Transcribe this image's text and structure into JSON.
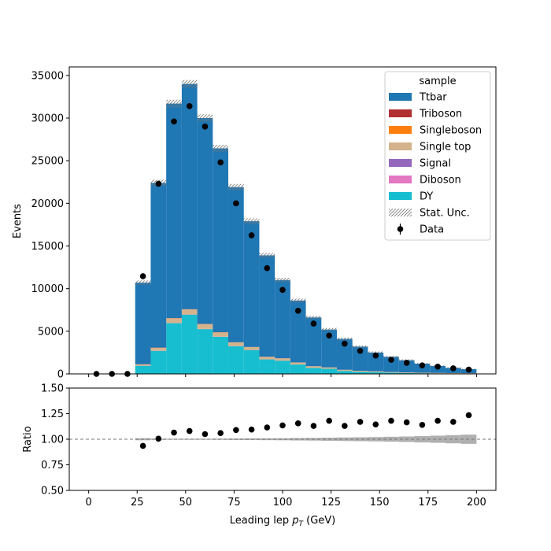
{
  "chart_data": [
    {
      "type": "bar",
      "subtype": "stacked histogram with data points",
      "title": "",
      "xlabel": "Leading lep $p_T$ (GeV)",
      "xlabel_main": "Leading lep ",
      "xlabel_sym": "p",
      "xlabel_sub": "T",
      "xlabel_unit": " (GeV)",
      "ylabel": "Events",
      "xlim": [
        -10,
        210
      ],
      "ylim": [
        0,
        36000
      ],
      "xticks": [
        0,
        25,
        50,
        75,
        100,
        125,
        150,
        175,
        200
      ],
      "yticks": [
        0,
        5000,
        10000,
        15000,
        20000,
        25000,
        30000,
        35000
      ],
      "bin_edges": [
        0,
        8,
        16,
        24,
        32,
        40,
        48,
        56,
        64,
        72,
        80,
        88,
        96,
        104,
        112,
        120,
        128,
        136,
        144,
        152,
        160,
        168,
        176,
        184,
        192,
        200
      ],
      "series": [
        {
          "name": "DY",
          "color": "#17becf",
          "values": [
            0,
            0,
            0,
            950,
            2700,
            5950,
            6950,
            5250,
            4350,
            3250,
            2800,
            1700,
            1550,
            1100,
            700,
            600,
            350,
            250,
            200,
            150,
            100,
            80,
            60,
            50,
            40
          ]
        },
        {
          "name": "Diboson",
          "color": "#e377c2",
          "values": [
            0,
            0,
            0,
            10,
            20,
            20,
            20,
            20,
            15,
            15,
            10,
            10,
            10,
            10,
            10,
            5,
            5,
            5,
            5,
            5,
            5,
            5,
            5,
            5,
            5
          ]
        },
        {
          "name": "Signal",
          "color": "#9467bd",
          "values": [
            0,
            0,
            0,
            0,
            0,
            0,
            0,
            0,
            0,
            0,
            0,
            0,
            0,
            0,
            0,
            0,
            0,
            0,
            0,
            0,
            0,
            0,
            0,
            0,
            0
          ]
        },
        {
          "name": "Single top",
          "color": "#d4b38c",
          "values": [
            0,
            0,
            0,
            150,
            330,
            550,
            580,
            560,
            500,
            420,
            330,
            290,
            260,
            220,
            180,
            150,
            120,
            100,
            80,
            65,
            55,
            45,
            38,
            32,
            28
          ]
        },
        {
          "name": "Singleboson",
          "color": "#ff7f0e",
          "values": [
            0,
            0,
            0,
            10,
            15,
            15,
            15,
            15,
            10,
            10,
            10,
            5,
            5,
            5,
            5,
            5,
            5,
            5,
            5,
            5,
            5,
            5,
            5,
            5,
            5
          ]
        },
        {
          "name": "Triboson",
          "color": "#b03030",
          "values": [
            0,
            0,
            0,
            20,
            20,
            20,
            20,
            20,
            15,
            15,
            10,
            10,
            10,
            10,
            10,
            5,
            5,
            5,
            5,
            5,
            5,
            5,
            5,
            5,
            5
          ]
        },
        {
          "name": "Ttbar",
          "color": "#1f77b4",
          "values": [
            0,
            0,
            0,
            9560,
            19315,
            25145,
            26415,
            24135,
            21560,
            18190,
            14740,
            11885,
            9165,
            7255,
            5715,
            4435,
            3615,
            2835,
            2210,
            1770,
            1430,
            1060,
            812,
            608,
            472
          ]
        }
      ],
      "data": {
        "name": "Data",
        "x": [
          4,
          12,
          20,
          28,
          36,
          44,
          52,
          60,
          68,
          76,
          84,
          92,
          100,
          108,
          116,
          124,
          132,
          140,
          148,
          156,
          164,
          172,
          180,
          188,
          196
        ],
        "y": [
          0,
          0,
          0,
          11450,
          22300,
          29600,
          31400,
          29000,
          24800,
          20000,
          16250,
          12400,
          9850,
          7400,
          5900,
          4500,
          3550,
          2700,
          2150,
          1650,
          1300,
          1000,
          850,
          650,
          500
        ]
      },
      "stat_unc_label": "Stat. Unc.",
      "legend": {
        "title": "sample",
        "placement": "upper right",
        "entries": [
          "Ttbar",
          "Triboson",
          "Singleboson",
          "Single top",
          "Signal",
          "Diboson",
          "DY",
          "Stat. Unc.",
          "Data"
        ]
      }
    },
    {
      "type": "scatter",
      "title": "",
      "xlabel": "Leading lep $p_T$ (GeV)",
      "ylabel": "Ratio",
      "xlim": [
        -10,
        210
      ],
      "ylim": [
        0.5,
        1.5
      ],
      "xticks": [
        0,
        25,
        50,
        75,
        100,
        125,
        150,
        175,
        200
      ],
      "yticks": [
        0.5,
        0.75,
        1.0,
        1.25,
        1.5
      ],
      "ytick_labels": [
        "0.50",
        "0.75",
        "1.00",
        "1.25",
        "1.50"
      ],
      "reference_line": 1.0,
      "x": [
        28,
        36,
        44,
        52,
        60,
        68,
        76,
        84,
        92,
        100,
        108,
        116,
        124,
        132,
        140,
        148,
        156,
        164,
        172,
        180,
        188,
        196
      ],
      "y": [
        0.935,
        1.005,
        1.065,
        1.08,
        1.05,
        1.06,
        1.09,
        1.095,
        1.115,
        1.135,
        1.155,
        1.13,
        1.18,
        1.13,
        1.17,
        1.145,
        1.18,
        1.165,
        1.14,
        1.18,
        1.17,
        1.235
      ],
      "unc_half_width": [
        0.01,
        0.006,
        0.005,
        0.005,
        0.005,
        0.006,
        0.007,
        0.008,
        0.009,
        0.01,
        0.012,
        0.013,
        0.015,
        0.017,
        0.019,
        0.021,
        0.024,
        0.027,
        0.031,
        0.035,
        0.04,
        0.045
      ]
    }
  ]
}
